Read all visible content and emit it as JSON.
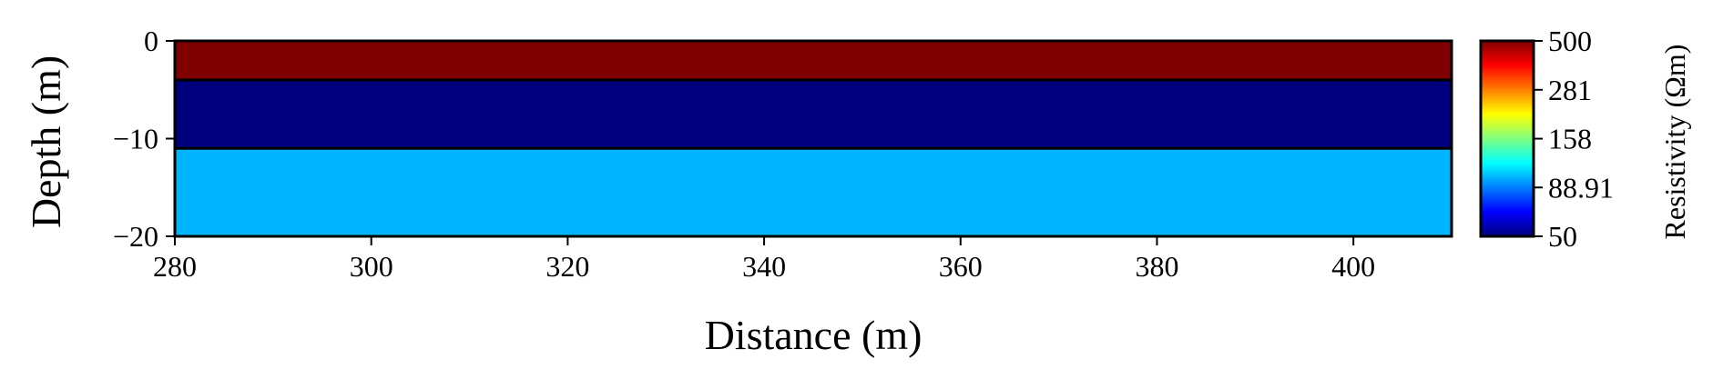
{
  "chart_data": {
    "type": "heatmap",
    "title": "",
    "xlabel": "Distance (m)",
    "ylabel": "Depth (m)",
    "xlim": [
      280,
      410
    ],
    "ylim": [
      -20,
      0
    ],
    "xticks": [
      280,
      300,
      320,
      340,
      360,
      380,
      400
    ],
    "yticks": [
      0,
      -10,
      -20
    ],
    "ytick_labels": [
      "0",
      "−10",
      "−20"
    ],
    "layers": [
      {
        "top": 0,
        "bottom": -4,
        "resistivity": 500,
        "color": "#7f0000"
      },
      {
        "top": -4,
        "bottom": -11,
        "resistivity": 50,
        "color": "#00007f"
      },
      {
        "top": -11,
        "bottom": -20,
        "resistivity": 102,
        "color": "#00b4ff"
      }
    ],
    "colorbar": {
      "label": "Resistivity (Ωm)",
      "scale": "log",
      "range": [
        50,
        500
      ],
      "ticks": [
        500,
        281,
        158,
        88.91,
        50
      ],
      "tick_labels": [
        "500",
        "281",
        "158",
        "88.91",
        "50"
      ],
      "colormap": "jet",
      "colormap_stops": [
        "#00007f",
        "#0000ff",
        "#007fff",
        "#00ffff",
        "#7fff7f",
        "#ffff00",
        "#ff7f00",
        "#ff0000",
        "#7f0000"
      ]
    }
  }
}
